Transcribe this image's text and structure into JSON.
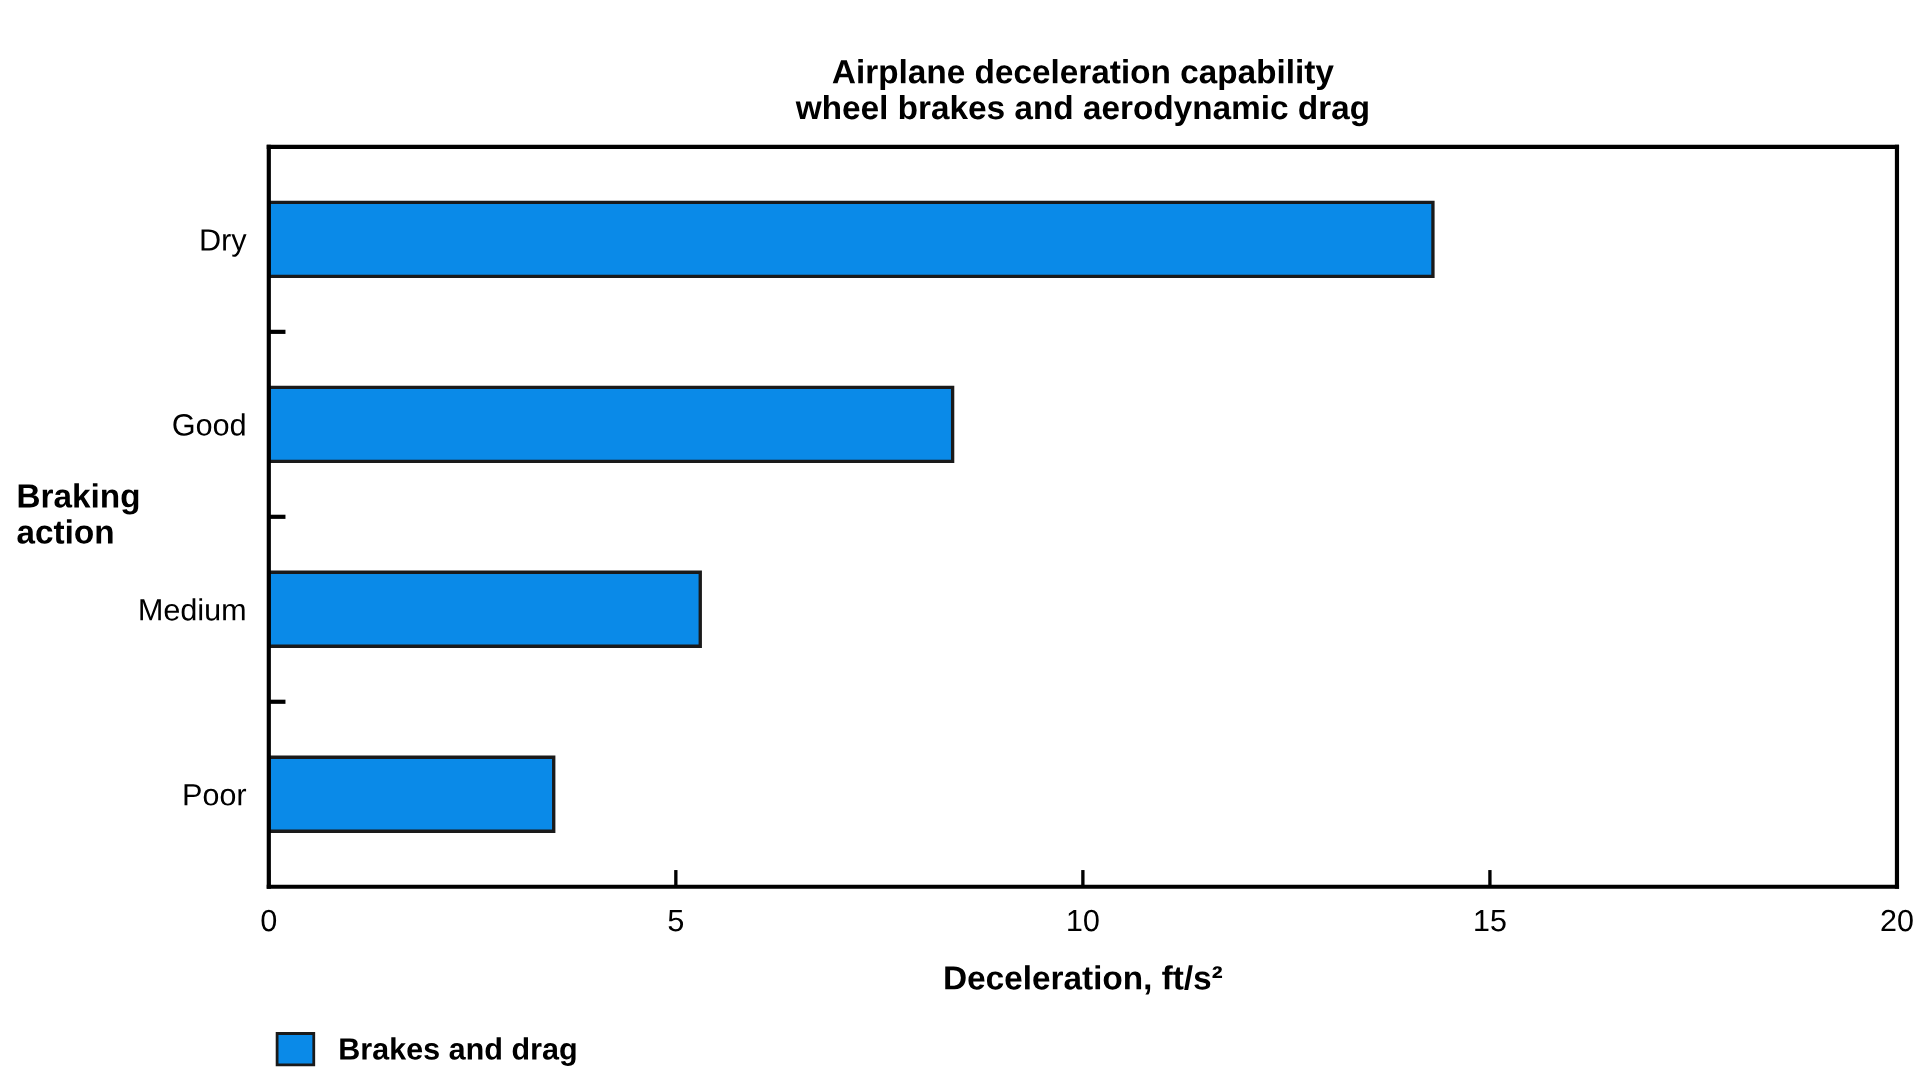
{
  "chart_data": {
    "type": "bar",
    "orientation": "horizontal",
    "title": "Airplane deceleration capability\nwheel brakes and aerodynamic drag",
    "xlabel": "Deceleration, ft/s²",
    "ylabel": "Braking\naction",
    "categories": [
      "Dry",
      "Good",
      "Medium",
      "Poor"
    ],
    "series": [
      {
        "name": "Brakes and drag",
        "color": "#0a8ae8",
        "values": [
          14.3,
          8.4,
          5.3,
          3.5
        ]
      }
    ],
    "xlim": [
      0,
      20
    ],
    "xticks": [
      0,
      5,
      10,
      15,
      20
    ],
    "grid": false,
    "legend": "bottom left"
  }
}
